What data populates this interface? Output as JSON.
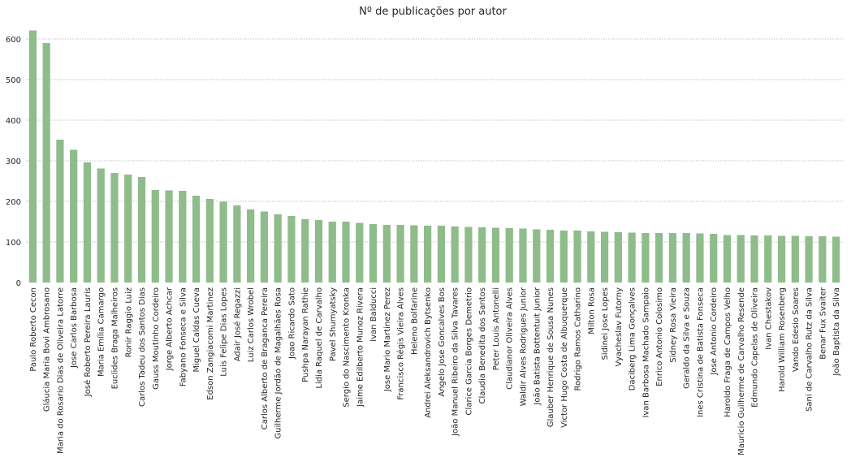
{
  "chart_data": {
    "type": "bar",
    "title": "Nº de publicações por autor",
    "xlabel": "",
    "ylabel": "",
    "ylim": [
      0,
      640
    ],
    "yticks": [
      0,
      100,
      200,
      300,
      400,
      500,
      600
    ],
    "grid": "horizontal-dotted",
    "bar_color": "#8fbc8b",
    "categories": [
      "Paulo Roberto Cecon",
      "Gláucia Maria Bovi Ambrosano",
      "Maria do Rosario Dias de Oliveira Latorre",
      "Jose Carlos Barbosa",
      "José Roberto Pereira Lauris",
      "Maria Emília Camargo",
      "Euclides Braga Malheiros",
      "Ronir Raggio Luiz",
      "Carlos Tadeu dos Santos Dias",
      "Gauss Moutinho Cordeiro",
      "Jorge Alberto Achcar",
      "Fabyano Fonseca e Silva",
      "Miguel Caldas Cueva",
      "Edson Zangiacomi Martinez",
      "Luis Felipe Dias Lopes",
      "Adair José Regazzi",
      "Luiz Carlos Wrobel",
      "Carlos Alberto de Braganca Pereira",
      "Guilherme Jordão de Magalhães Rosa",
      "Joao Ricardo Sato",
      "Pushpa Narayan Rathie",
      "Lídia Raquel de Carvalho",
      "Pavel Shumyatsky",
      "Sergio do Nascimento Kronka",
      "Jaime Edilberto Munoz Rivera",
      "Ivan Balducci",
      "Jose Mario Martinez Perez",
      "Francisco Régis Vieira Alves",
      "Heleno Bolfarine",
      "Andrei Aleksandrovich Bytsenko",
      "Angelo Jose Goncalves Bos",
      "João Manuel Ribeiro da Silva Tavares",
      "Clarice Garcia Borges Demetrio",
      "Claudia Benedita dos Santos",
      "Peter Louis Antonelli",
      "Claudianor Oliveira Alves",
      "Waldir Alves Rodrigues Junior",
      "João Batista Bottentuit Junior",
      "Glauber Henrique de Sousa Nunes",
      "Victor Hugo Costa de Albuquerque",
      "Rodrigo Ramos Catharino",
      "Milton Rosa",
      "Sidinei Jose Lopes",
      "Vyacheslav Futorny",
      "Daciberg Lima Gonçalves",
      "Ivan Barbosa Machado Sampaio",
      "Enrico Antonio Colosimo",
      "Sidney Rosa Vieira",
      "Geraldo da Silva e Souza",
      "Ines Cristina de Batista Fonseca",
      "Jose Antonio Cordeiro",
      "Haroldo Fraga de Campos Velho",
      "Mauricio Guilherme de Carvalho Resende",
      "Edmundo Capelas de Oliveira",
      "Ivan Chestakov",
      "Harold William Rosenberg",
      "Vando Edesio Soares",
      "Sani de Carvalho Rutz da Silva",
      "Benar Fux Svaiter",
      "João Baptista da Silva"
    ],
    "values": [
      621,
      590,
      352,
      327,
      296,
      281,
      270,
      266,
      260,
      228,
      227,
      226,
      214,
      206,
      199,
      190,
      180,
      175,
      168,
      164,
      156,
      154,
      150,
      150,
      147,
      144,
      142,
      142,
      141,
      140,
      140,
      138,
      137,
      136,
      135,
      134,
      133,
      131,
      130,
      128,
      128,
      126,
      125,
      124,
      123,
      122,
      122,
      122,
      122,
      121,
      120,
      117,
      117,
      116,
      116,
      115,
      115,
      114,
      114,
      113
    ]
  }
}
